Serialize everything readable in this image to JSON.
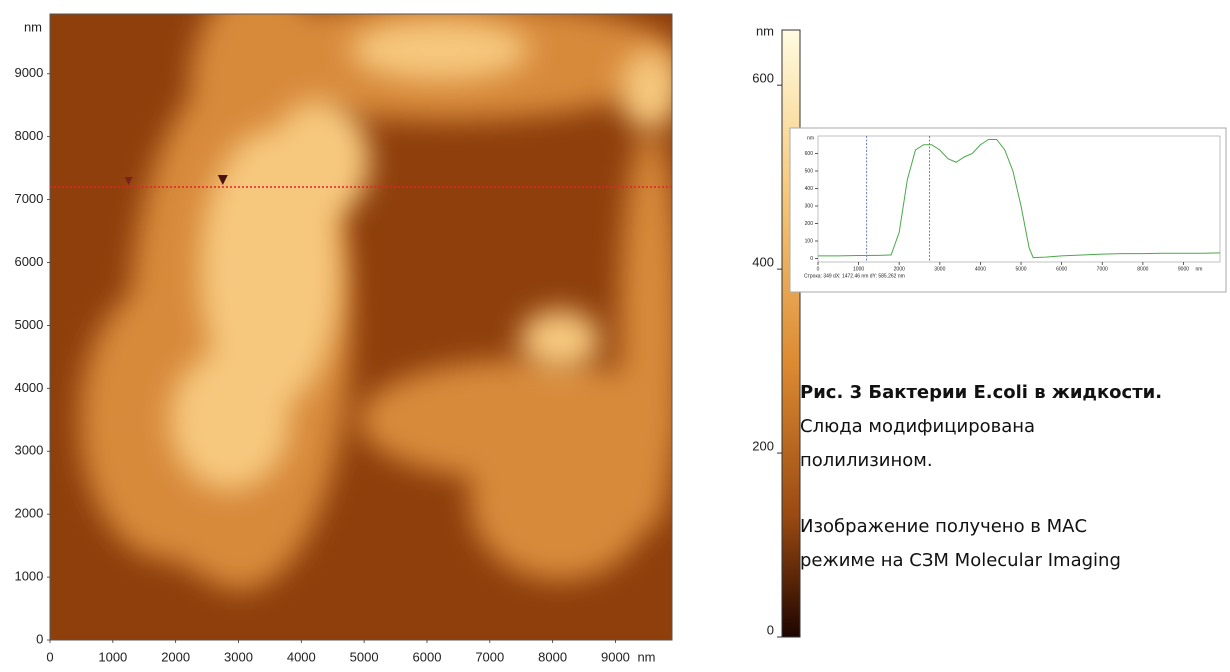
{
  "chart_data": [
    {
      "type": "image",
      "x_label": "nm",
      "y_label": "nm",
      "xlim": [
        0,
        9900
      ],
      "ylim": [
        0,
        9950
      ],
      "xticks": [
        0,
        1000,
        2000,
        3000,
        4000,
        5000,
        6000,
        7000,
        8000,
        9000
      ],
      "yticks": [
        0,
        1000,
        2000,
        3000,
        4000,
        5000,
        6000,
        7000,
        8000,
        9000
      ],
      "cursor_line": 7200,
      "cursor_line_color": "#e8202a"
    },
    {
      "type": "colorbar",
      "y_label": "nm",
      "ylim": [
        0,
        660
      ],
      "yticks": [
        0,
        200,
        400,
        600
      ]
    },
    {
      "type": "line",
      "y_label": "nm",
      "x_label": "nm",
      "footer": "Строка: 349     dX: 1472.46 nm  dY: 585.262 nm",
      "xlim": [
        0,
        9900
      ],
      "ylim": [
        -20,
        700
      ],
      "xticks": [
        0,
        1000,
        2000,
        3000,
        4000,
        5000,
        6000,
        7000,
        8000,
        9000
      ],
      "yticks": [
        0,
        100,
        200,
        300,
        400,
        500,
        600
      ],
      "cursors": [
        1200,
        2750
      ],
      "x": [
        0,
        500,
        1000,
        1500,
        1800,
        2000,
        2200,
        2400,
        2600,
        2800,
        3000,
        3200,
        3400,
        3600,
        3800,
        4000,
        4200,
        4400,
        4600,
        4800,
        5000,
        5200,
        5300,
        5600,
        6000,
        6500,
        7000,
        7500,
        8000,
        8500,
        9000,
        9500,
        9900
      ],
      "series": [
        {
          "color": "#4aa84a",
          "values": [
            15,
            15,
            17,
            18,
            20,
            150,
            450,
            620,
            650,
            650,
            620,
            570,
            550,
            580,
            600,
            650,
            680,
            680,
            620,
            500,
            300,
            60,
            5,
            8,
            15,
            20,
            25,
            28,
            28,
            30,
            30,
            30,
            32
          ]
        }
      ]
    }
  ],
  "caption": {
    "title": "Рис. 3 Бактерии E.coli в жидкости.",
    "lines": [
      "Слюда модифицирована",
      "полилизином.",
      "Изображение получено в МАС",
      "режиме на СЗМ Molecular Imaging"
    ]
  }
}
